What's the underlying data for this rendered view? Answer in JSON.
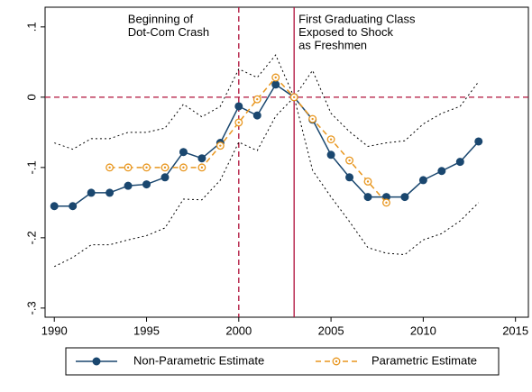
{
  "chart_data": {
    "type": "line",
    "x": [
      1990,
      1991,
      1992,
      1993,
      1994,
      1995,
      1996,
      1997,
      1998,
      1999,
      2000,
      2001,
      2002,
      2003,
      2004,
      2005,
      2006,
      2007,
      2008,
      2009,
      2010,
      2011,
      2012,
      2013
    ],
    "series": [
      {
        "name": "Non-Parametric Estimate",
        "color": "#1a476f",
        "style": "solid",
        "marker": "filled",
        "legend": true,
        "values": [
          -0.155,
          -0.155,
          -0.136,
          -0.136,
          -0.126,
          -0.124,
          -0.114,
          -0.078,
          -0.087,
          -0.065,
          -0.013,
          -0.026,
          0.018,
          0,
          -0.032,
          -0.082,
          -0.114,
          -0.142,
          -0.142,
          -0.142,
          -0.118,
          -0.105,
          -0.092,
          -0.063
        ]
      },
      {
        "name": "Parametric Estimate",
        "color": "#e8961e",
        "style": "dash",
        "marker": "hollow",
        "legend": true,
        "values": [
          null,
          null,
          null,
          -0.1,
          -0.1,
          -0.1,
          -0.1,
          -0.1,
          -0.1,
          -0.069,
          -0.036,
          -0.003,
          0.028,
          0,
          -0.031,
          -0.06,
          -0.09,
          -0.12,
          -0.15,
          null,
          null,
          null,
          null,
          null
        ]
      },
      {
        "color": "#000000",
        "style": "dot",
        "marker": "none",
        "legend": false,
        "values": [
          -0.065,
          -0.074,
          -0.059,
          -0.059,
          -0.05,
          -0.05,
          -0.044,
          -0.01,
          -0.028,
          -0.013,
          0.04,
          0.028,
          0.06,
          0,
          0.038,
          -0.023,
          -0.049,
          -0.07,
          -0.065,
          -0.062,
          -0.038,
          -0.023,
          -0.013,
          0.022
        ]
      },
      {
        "color": "#000000",
        "style": "dot",
        "marker": "none",
        "legend": false,
        "values": [
          -0.241,
          -0.228,
          -0.21,
          -0.21,
          -0.203,
          -0.197,
          -0.186,
          -0.145,
          -0.146,
          -0.118,
          -0.064,
          -0.076,
          -0.027,
          0,
          -0.104,
          -0.142,
          -0.177,
          -0.214,
          -0.222,
          -0.224,
          -0.203,
          -0.194,
          -0.176,
          -0.15
        ]
      }
    ],
    "xlim": [
      1989.5,
      2015.7
    ],
    "xticks": [
      1990,
      1995,
      2000,
      2005,
      2010,
      2015
    ],
    "ylim": [
      -0.313,
      0.128
    ],
    "yticks": [
      {
        "value": -0.3,
        "label": "-.3"
      },
      {
        "value": -0.2,
        "label": "-.2"
      },
      {
        "value": -0.1,
        "label": "-.1"
      },
      0,
      {
        "value": 0.1,
        "label": ".1"
      }
    ],
    "hlines": [
      {
        "y": 0,
        "style": "dash",
        "color": "#b0103a"
      }
    ],
    "vlines": [
      {
        "x": 2000,
        "style": "dash",
        "color": "#b0103a",
        "label": [
          "Beginning of",
          "Dot-Com Crash"
        ],
        "label_side": "left"
      },
      {
        "x": 2003,
        "style": "solid",
        "color": "#b0103a",
        "label": [
          "First Graduating Class",
          "Exposed to Shock",
          "as Freshmen"
        ],
        "label_side": "right"
      }
    ],
    "legend_position": "bottom"
  }
}
